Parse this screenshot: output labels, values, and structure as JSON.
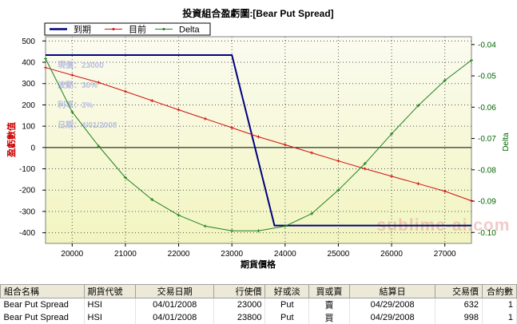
{
  "chart_data": {
    "type": "line",
    "title": "投資組合盈虧圖:[Bear Put Spread]",
    "xlabel": "期貨價格",
    "ylabel": "盈虧數值",
    "y2label": "Delta",
    "xlim": [
      19500,
      27500
    ],
    "ylim": [
      -450,
      520
    ],
    "y2lim": [
      -0.1035,
      -0.0375
    ],
    "x_ticks": [
      20000,
      21000,
      22000,
      23000,
      24000,
      25000,
      26000,
      27000
    ],
    "y_ticks": [
      500,
      400,
      300,
      200,
      100,
      0,
      -100,
      -200,
      -300,
      -400
    ],
    "y2_ticks": [
      -0.04,
      -0.05,
      -0.06,
      -0.07,
      -0.08,
      -0.09,
      -0.1
    ],
    "grid": true,
    "legend_placement": "top-left",
    "series": [
      {
        "name": "到期",
        "axis": "left",
        "color": "#000080",
        "x": [
          19500,
          23000,
          23800,
          27500
        ],
        "y": [
          434,
          434,
          -366,
          -366
        ]
      },
      {
        "name": "目前",
        "axis": "left",
        "color": "#d01010",
        "x": [
          19500,
          20000,
          20500,
          21000,
          21500,
          22000,
          22500,
          23000,
          23500,
          24000,
          24500,
          25000,
          25500,
          26000,
          26500,
          27000,
          27500
        ],
        "y": [
          375,
          340,
          305,
          263,
          220,
          177,
          135,
          93,
          50,
          13,
          -25,
          -63,
          -100,
          -135,
          -170,
          -205,
          -250
        ]
      },
      {
        "name": "Delta",
        "axis": "right",
        "color": "#208020",
        "x": [
          19500,
          20000,
          20500,
          21000,
          21500,
          22000,
          22500,
          23000,
          23500,
          24000,
          24500,
          25000,
          25500,
          26000,
          26500,
          27000,
          27500
        ],
        "y": [
          -0.0445,
          -0.0615,
          -0.0725,
          -0.0825,
          -0.0895,
          -0.0945,
          -0.098,
          -0.0995,
          -0.0995,
          -0.098,
          -0.094,
          -0.0865,
          -0.078,
          -0.0685,
          -0.0595,
          -0.0515,
          -0.045
        ]
      }
    ],
    "annotations": [
      "現價：23000",
      "波動：30%",
      "利率：3%",
      "日期：4/01/2008"
    ]
  },
  "watermark": "sublime-ai.com",
  "table": {
    "headers": [
      "組合名稱",
      "期貨代號",
      "交易日期",
      "行使價",
      "好或淡",
      "買或賣",
      "結算日",
      "交易價",
      "合約數"
    ],
    "rows": [
      [
        "Bear Put Spread",
        "HSI",
        "04/01/2008",
        "23000",
        "Put",
        "賣",
        "04/29/2008",
        "632",
        "1"
      ],
      [
        "Bear Put Spread",
        "HSI",
        "04/01/2008",
        "23800",
        "Put",
        "買",
        "04/29/2008",
        "998",
        "1"
      ]
    ]
  }
}
